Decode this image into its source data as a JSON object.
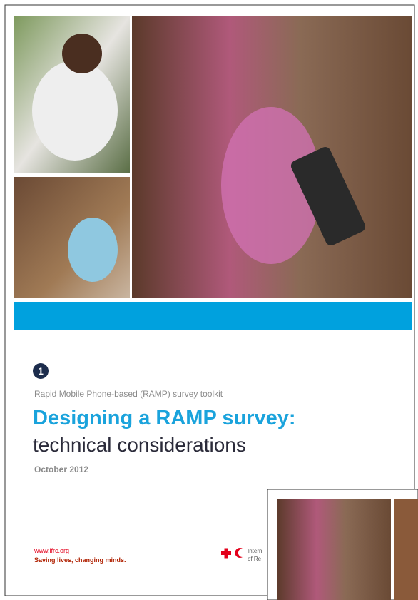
{
  "cover": {
    "number": "1",
    "series_title": "Rapid Mobile Phone-based (RAMP) survey toolkit",
    "title": "Designing a RAMP survey:",
    "subtitle": "technical considerations",
    "date": "October 2012",
    "footer": {
      "url": "www.ifrc.org",
      "slogan": "Saving lives, changing minds.",
      "logo_line_1": "Intern",
      "logo_line_2": "of Re"
    }
  }
}
